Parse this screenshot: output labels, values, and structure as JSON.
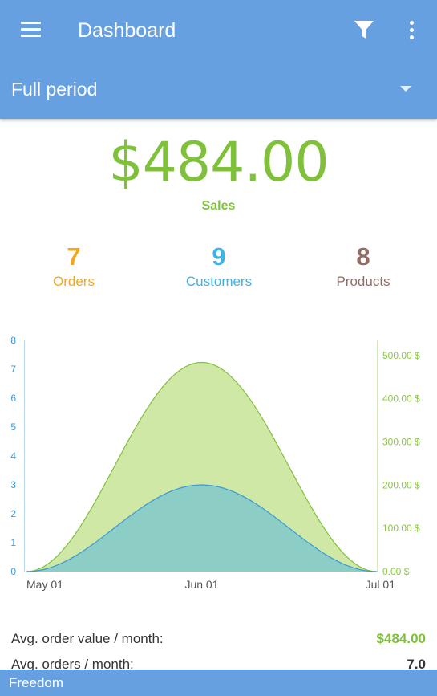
{
  "toolbar": {
    "title": "Dashboard",
    "menu_icon": "hamburger-menu-icon",
    "filter_icon": "filter-icon",
    "overflow_icon": "more-vertical-icon",
    "period": {
      "selected": "Full period",
      "caret_icon": "dropdown-caret-icon"
    },
    "color": "#67a0e0"
  },
  "sales": {
    "value": "$484.00",
    "label": "Sales",
    "color": "#7fc13a"
  },
  "stats": [
    {
      "value": "7",
      "label": "Orders",
      "color": "#f1a81a"
    },
    {
      "value": "9",
      "label": "Customers",
      "color": "#3fb2e6"
    },
    {
      "value": "8",
      "label": "Products",
      "color": "#926c62"
    }
  ],
  "chart_data": {
    "type": "area",
    "x": [
      "May 01",
      "Jun 01",
      "Jul 01"
    ],
    "series": [
      {
        "axis": "right",
        "values": [
          0,
          484,
          0
        ],
        "color": "#7fc13a",
        "fill": "#cfe8a6"
      },
      {
        "axis": "left",
        "values": [
          0,
          3,
          0
        ],
        "color": "#3a9ad9",
        "fill": "#8ccdc5"
      }
    ],
    "y_left": {
      "range": [
        0,
        8
      ],
      "ticks": [
        "0",
        "1",
        "2",
        "3",
        "4",
        "5",
        "6",
        "7",
        "8"
      ],
      "color": "#3a9ad9"
    },
    "y_right": {
      "range": [
        0,
        535
      ],
      "ticks": [
        "0.00 $",
        "100.00 $",
        "200.00 $",
        "300.00 $",
        "400.00 $",
        "500.00 $"
      ],
      "tick_values": [
        0,
        100,
        200,
        300,
        400,
        500
      ],
      "color": "#8cc44a"
    },
    "x_tick_labels": [
      "May 01",
      "Jun 01",
      "Jul 01"
    ],
    "grid": false,
    "legend": "none"
  },
  "summary": {
    "avg_order_value_label": "Avg. order value / month:",
    "avg_order_value": "$484.00",
    "avg_orders_label": "Avg. orders / month:",
    "avg_orders": "7.0"
  },
  "footer": {
    "label": "Freedom"
  }
}
